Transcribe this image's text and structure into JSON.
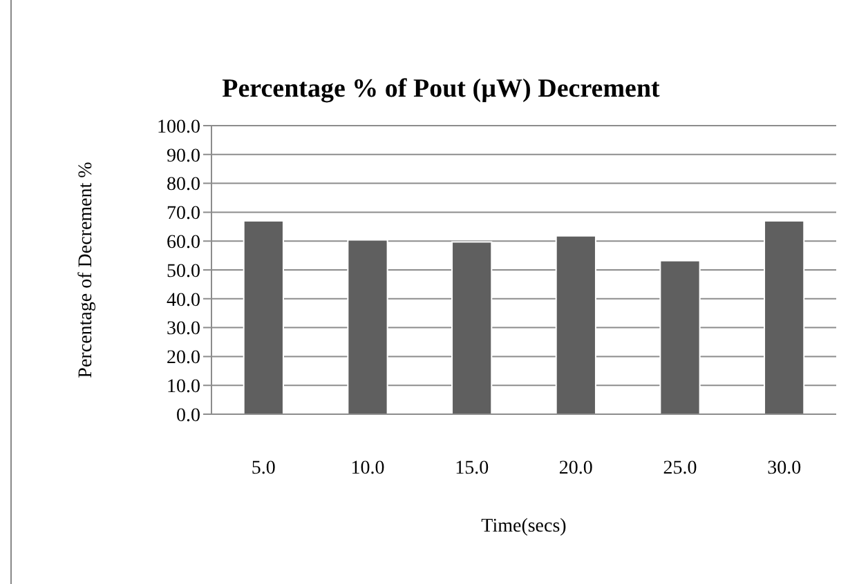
{
  "chart_data": {
    "type": "bar",
    "title": "Percentage % of Pout (µW) Decrement",
    "xlabel": "Time(secs)",
    "ylabel": "Percentage  of Decrement %",
    "categories": [
      "5.0",
      "10.0",
      "15.0",
      "20.0",
      "25.0",
      "30.0"
    ],
    "values": [
      67.0,
      60.4,
      59.7,
      61.8,
      53.2,
      67.0
    ],
    "color": "#5f5f5f",
    "ylim": [
      0,
      100
    ],
    "yticks": [
      {
        "value": 0,
        "label": "0.0"
      },
      {
        "value": 10,
        "label": "10.0"
      },
      {
        "value": 20,
        "label": "20.0"
      },
      {
        "value": 30,
        "label": "30.0"
      },
      {
        "value": 40,
        "label": "40.0"
      },
      {
        "value": 50,
        "label": "50.0"
      },
      {
        "value": 60,
        "label": "60.0"
      },
      {
        "value": 70,
        "label": "70.0"
      },
      {
        "value": 80,
        "label": "80.0"
      },
      {
        "value": 90,
        "label": "90.0"
      },
      {
        "value": 100,
        "label": "100.0"
      }
    ],
    "grid": "y"
  }
}
